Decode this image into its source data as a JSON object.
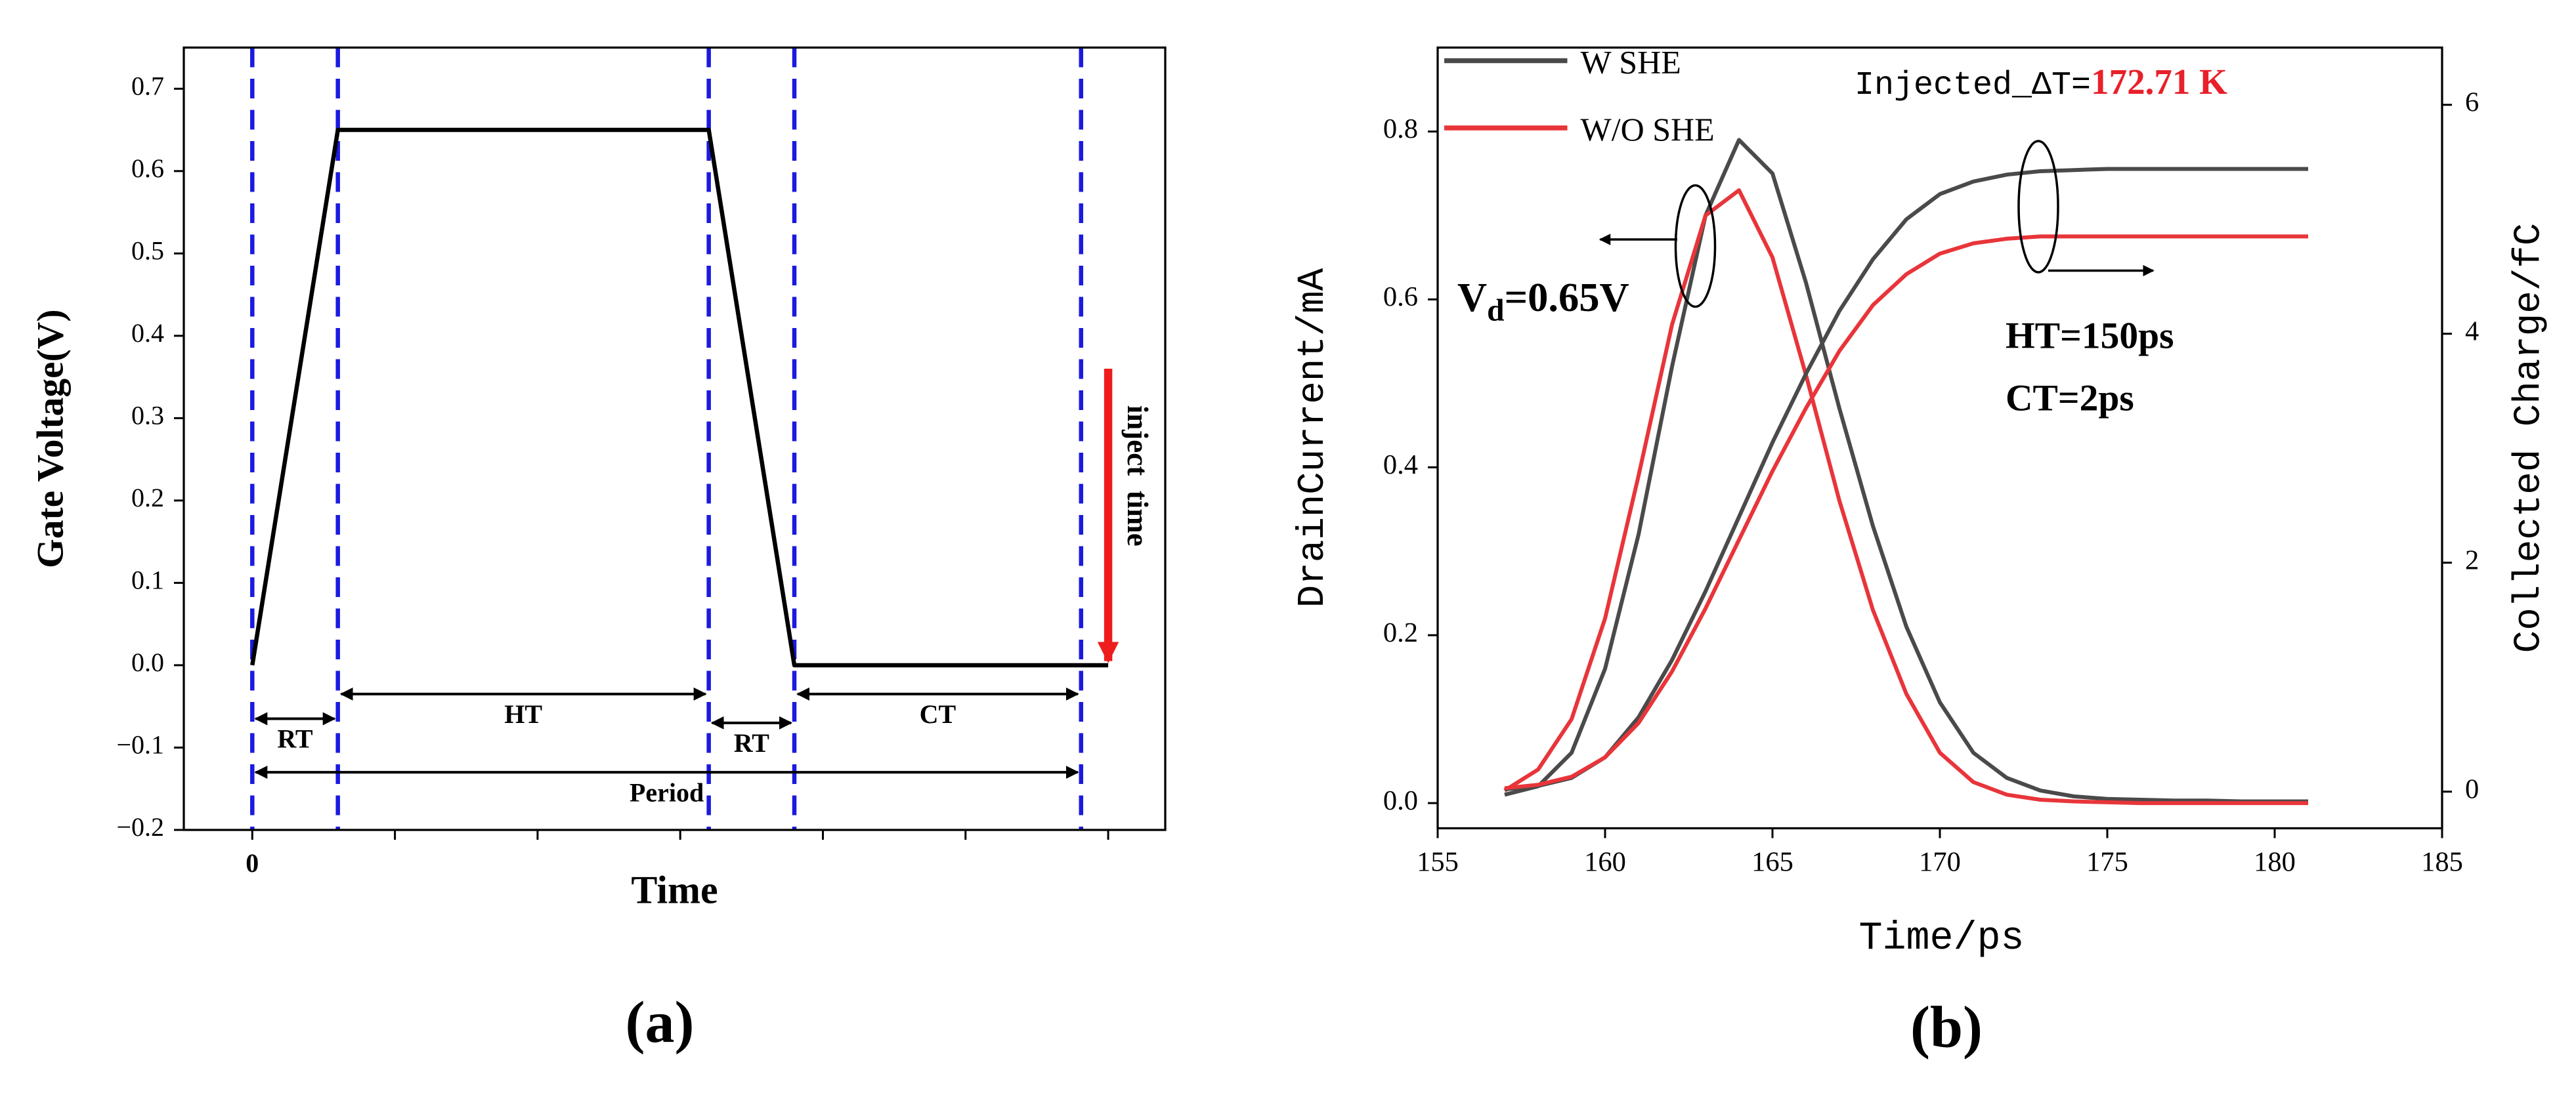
{
  "chart_data": [
    {
      "type": "line",
      "panel_label": "(a)",
      "y_label": "Gate Voltage(V)",
      "x_label": "Time",
      "x": [
        0,
        0.6,
        3.2,
        3.8,
        6
      ],
      "series": [
        {
          "color": "#000000",
          "values": [
            0,
            0.65,
            0.65,
            0,
            0
          ]
        }
      ],
      "xlim": [
        -0.48,
        6.4
      ],
      "xticks": [
        0,
        {
          "value": 1,
          "label": null
        },
        {
          "value": 2,
          "label": null
        },
        {
          "value": 3,
          "label": null
        },
        {
          "value": 4,
          "label": null
        },
        {
          "value": 5,
          "label": null
        },
        {
          "value": 6,
          "label": null
        }
      ],
      "ylim": [
        -0.2,
        0.75
      ],
      "yticks": [
        {
          "value": -0.2,
          "label": "−0.2"
        },
        {
          "value": -0.1,
          "label": "−0.1"
        },
        {
          "value": 0,
          "label": "0.0"
        },
        0.1,
        0.2,
        0.3,
        0.4,
        0.5,
        0.6,
        0.7
      ],
      "vlines": [
        0,
        0.6,
        3.2,
        3.8,
        5.81
      ],
      "vline_color": "#1a1ae0",
      "annotations": [
        "RT",
        "HT",
        "RT",
        "CT",
        "Period",
        "inject  time"
      ],
      "inject_color": "#ee1c1c"
    },
    {
      "type": "line",
      "panel_label": "(b)",
      "y_label": "DrainCurrent/mA",
      "y2_label": "Collected Charge/fC",
      "x_label": "Time/ps",
      "x": [
        157,
        158,
        159,
        160,
        161,
        162,
        163,
        164,
        165,
        166,
        167,
        168,
        169,
        170,
        171,
        172,
        173,
        174,
        175,
        176,
        177,
        178,
        179,
        180,
        181
      ],
      "series": [
        {
          "name": "W SHE",
          "color": "#4a4a4a",
          "values": [
            0.01,
            0.02,
            0.06,
            0.16,
            0.32,
            0.52,
            0.7,
            0.79,
            0.75,
            0.62,
            0.47,
            0.33,
            0.21,
            0.12,
            0.06,
            0.03,
            0.015,
            0.008,
            0.005,
            0.004,
            0.003,
            0.003,
            0.002,
            0.002,
            0.002
          ]
        },
        {
          "name": "W/O SHE",
          "color": "#e8353a",
          "values": [
            0.015,
            0.04,
            0.1,
            0.22,
            0.39,
            0.57,
            0.7,
            0.73,
            0.65,
            0.51,
            0.36,
            0.23,
            0.13,
            0.06,
            0.025,
            0.01,
            0.004,
            0.002,
            0.001,
            0,
            0,
            0,
            0,
            0,
            0
          ]
        },
        {
          "color": "#4a4a4a",
          "axis": "y2",
          "values": [
            0.02,
            0.05,
            0.12,
            0.3,
            0.65,
            1.15,
            1.75,
            2.4,
            3.05,
            3.65,
            4.2,
            4.65,
            5.0,
            5.22,
            5.33,
            5.39,
            5.42,
            5.43,
            5.44,
            5.44,
            5.44,
            5.44,
            5.44,
            5.44,
            5.44
          ]
        },
        {
          "color": "#e8353a",
          "axis": "y2",
          "values": [
            0.03,
            0.06,
            0.13,
            0.3,
            0.6,
            1.05,
            1.6,
            2.2,
            2.8,
            3.35,
            3.85,
            4.25,
            4.52,
            4.7,
            4.79,
            4.83,
            4.85,
            4.85,
            4.85,
            4.85,
            4.85,
            4.85,
            4.85,
            4.85,
            4.85
          ]
        }
      ],
      "xlim": [
        155,
        185
      ],
      "xticks": [
        155,
        160,
        165,
        170,
        175,
        180,
        185
      ],
      "ylim": [
        -0.03,
        0.9
      ],
      "yticks": [
        {
          "value": 0,
          "label": "0.0"
        },
        0.2,
        0.4,
        0.6,
        0.8
      ],
      "y2lim": [
        -0.32,
        6.5
      ],
      "y2ticks": [
        0,
        2,
        4,
        6
      ],
      "annotations": [
        "Injected_ΔT=",
        "172.71 K",
        "V",
        "d",
        "=0.65V",
        "HT=150ps",
        "CT=2ps"
      ],
      "highlight_color": "#e8202a"
    }
  ]
}
